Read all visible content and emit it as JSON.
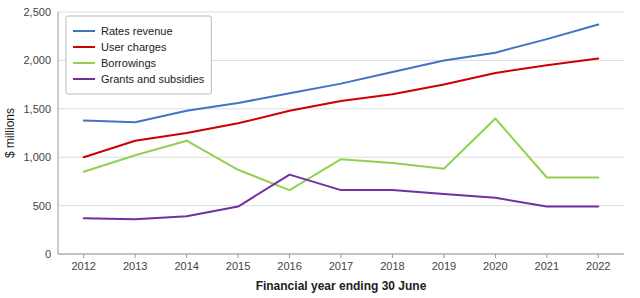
{
  "chart_data": {
    "type": "line",
    "x": [
      2012,
      2013,
      2014,
      2015,
      2016,
      2017,
      2018,
      2019,
      2020,
      2021,
      2022
    ],
    "series": [
      {
        "name": "Rates revenue",
        "color": "#4472C4",
        "values": [
          1380,
          1360,
          1480,
          1560,
          1660,
          1760,
          1880,
          2000,
          2080,
          2220,
          2370
        ]
      },
      {
        "name": "User charges",
        "color": "#CC0000",
        "values": [
          1000,
          1170,
          1250,
          1350,
          1480,
          1580,
          1650,
          1750,
          1870,
          1950,
          2020
        ]
      },
      {
        "name": "Borrowings",
        "color": "#92D050",
        "values": [
          850,
          1020,
          1170,
          870,
          660,
          980,
          940,
          880,
          1400,
          790,
          790
        ]
      },
      {
        "name": "Grants and subsidies",
        "color": "#7030A0",
        "values": [
          370,
          360,
          390,
          490,
          820,
          660,
          660,
          620,
          580,
          490,
          490
        ]
      }
    ],
    "xlabel": "Financial year ending 30 June",
    "ylabel": "$ millions",
    "xlim": [
      2011.5,
      2022.5
    ],
    "xticks": [
      2012,
      2013,
      2014,
      2015,
      2016,
      2017,
      2018,
      2019,
      2020,
      2021,
      2022
    ],
    "ylim": [
      0,
      2500
    ],
    "yticks": [
      0,
      500,
      {
        "value": 1000,
        "label": "1,000"
      },
      {
        "value": 1500,
        "label": "1,500"
      },
      {
        "value": 2000,
        "label": "2,000"
      },
      {
        "value": 2500,
        "label": "2,500"
      }
    ],
    "grid": true,
    "legend": "upper left"
  }
}
